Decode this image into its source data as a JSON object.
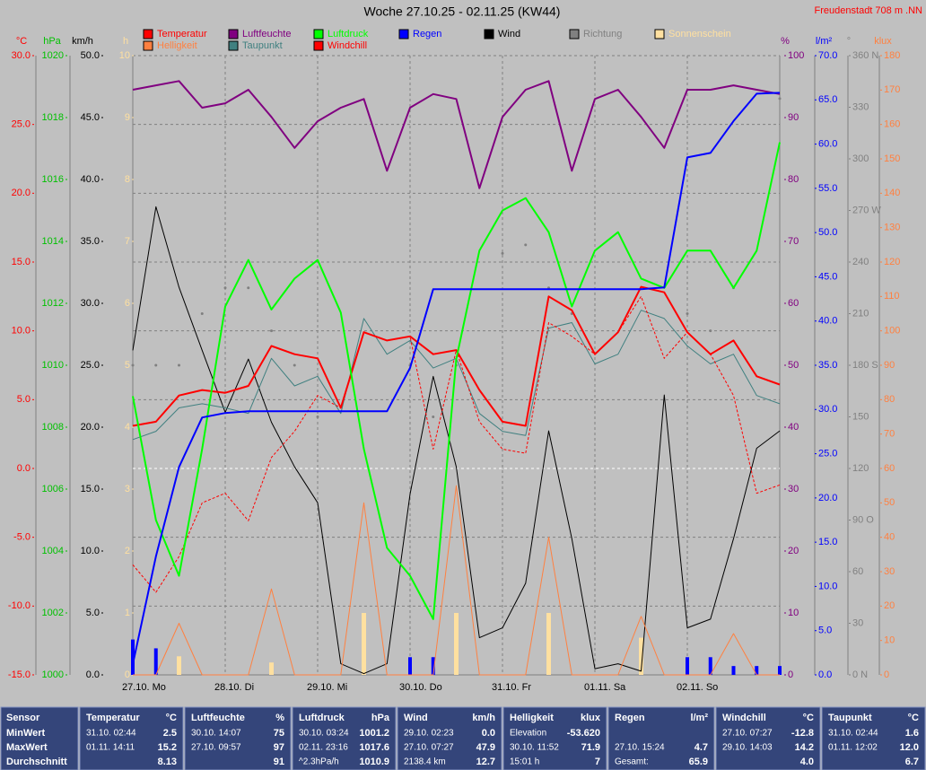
{
  "chart_data": {
    "type": "line",
    "title": "Woche 27.10.25 - 02.11.25 (KW44)",
    "location": "Freudenstadt 708 m  .NN",
    "grid": true,
    "categories": [
      "27.10. Mo",
      null,
      null,
      null,
      "28.10. Di",
      null,
      null,
      null,
      "29.10. Mi",
      null,
      null,
      null,
      "30.10. Do",
      null,
      null,
      null,
      "31.10. Fr",
      null,
      null,
      null,
      "01.11. Sa",
      null,
      null,
      null,
      "02.11. So",
      null,
      null,
      null,
      null
    ],
    "axes": [
      {
        "unit": "°C",
        "color": "#ff0000",
        "lim": [
          -15,
          30
        ],
        "ticks": [
          {
            "value": -15,
            "label": "-15.0"
          },
          {
            "value": -10,
            "label": "-10.0"
          },
          {
            "value": -5,
            "label": "-5.0"
          },
          {
            "value": 0,
            "label": "0.0"
          },
          {
            "value": 5,
            "label": "5.0"
          },
          {
            "value": 10,
            "label": "10.0"
          },
          {
            "value": 15,
            "label": "15.0"
          },
          {
            "value": 20,
            "label": "20.0"
          },
          {
            "value": 25,
            "label": "25.0"
          },
          {
            "value": 30,
            "label": "30.0"
          }
        ]
      },
      {
        "unit": "hPa",
        "color": "#00c000",
        "lim": [
          1000,
          1020
        ],
        "ticks": [
          1000,
          1002,
          1004,
          1006,
          1008,
          1010,
          1012,
          1014,
          1016,
          1018,
          1020
        ]
      },
      {
        "unit": "km/h",
        "color": "#000000",
        "lim": [
          0,
          50
        ],
        "ticks": [
          {
            "value": 0,
            "label": "0.0"
          },
          {
            "value": 5,
            "label": "5.0"
          },
          {
            "value": 10,
            "label": "10.0"
          },
          {
            "value": 15,
            "label": "15.0"
          },
          {
            "value": 20,
            "label": "20.0"
          },
          {
            "value": 25,
            "label": "25.0"
          },
          {
            "value": 30,
            "label": "30.0"
          },
          {
            "value": 35,
            "label": "35.0"
          },
          {
            "value": 40,
            "label": "40.0"
          },
          {
            "value": 45,
            "label": "45.0"
          },
          {
            "value": 50,
            "label": "50.0"
          }
        ]
      },
      {
        "unit": "h",
        "color": "#ffe0a0",
        "lim": [
          0,
          10
        ],
        "ticks": [
          0,
          1,
          2,
          3,
          4,
          5,
          6,
          7,
          8,
          9,
          10
        ]
      },
      {
        "unit": "%",
        "color": "#800080",
        "lim": [
          0,
          100
        ],
        "ticks": [
          0,
          10,
          20,
          30,
          40,
          50,
          60,
          70,
          80,
          90,
          100
        ]
      },
      {
        "unit": "l/m²",
        "color": "#0000ff",
        "lim": [
          0,
          70
        ],
        "ticks": [
          {
            "value": 0,
            "label": "0.0"
          },
          {
            "value": 5,
            "label": "5.0"
          },
          {
            "value": 10,
            "label": "10.0"
          },
          {
            "value": 15,
            "label": "15.0"
          },
          {
            "value": 20,
            "label": "20.0"
          },
          {
            "value": 25,
            "label": "25.0"
          },
          {
            "value": 30,
            "label": "30.0"
          },
          {
            "value": 35,
            "label": "35.0"
          },
          {
            "value": 40,
            "label": "40.0"
          },
          {
            "value": 45,
            "label": "45.0"
          },
          {
            "value": 50,
            "label": "50.0"
          },
          {
            "value": 55,
            "label": "55.0"
          },
          {
            "value": 60,
            "label": "60.0"
          },
          {
            "value": 65,
            "label": "65.0"
          },
          {
            "value": 70,
            "label": "70.0"
          }
        ]
      },
      {
        "unit": "°",
        "color": "#808080",
        "lim": [
          0,
          360
        ],
        "ticks": [
          {
            "value": 0,
            "label": "0 N"
          },
          30,
          60,
          {
            "value": 90,
            "label": "90 O"
          },
          120,
          150,
          {
            "value": 180,
            "label": "180 S"
          },
          210,
          240,
          {
            "value": 270,
            "label": "270 W"
          },
          300,
          330,
          {
            "value": 360,
            "label": "360 N"
          }
        ]
      },
      {
        "unit": "klux",
        "color": "#ff8040",
        "lim": [
          0,
          180
        ],
        "ticks": [
          0,
          10,
          20,
          30,
          40,
          50,
          60,
          70,
          80,
          90,
          100,
          110,
          120,
          130,
          140,
          150,
          160,
          170,
          180
        ]
      }
    ],
    "series": [
      {
        "name": "Temperatur",
        "color": "#ff0000",
        "axis": 0,
        "style": "line",
        "values": [
          3.1,
          3.4,
          5.3,
          5.7,
          5.5,
          6.0,
          8.9,
          8.3,
          8.0,
          4.4,
          9.9,
          9.3,
          9.6,
          8.3,
          8.6,
          5.7,
          3.4,
          3.1,
          12.5,
          11.5,
          8.3,
          9.9,
          13.2,
          12.8,
          9.9,
          8.3,
          9.3,
          6.7,
          6.1
        ]
      },
      {
        "name": "Luftfeuchte",
        "color": "#800080",
        "axis": 4,
        "style": "line",
        "values": [
          94.5,
          95.2,
          95.9,
          91.6,
          92.3,
          94.5,
          90.1,
          85.1,
          89.4,
          91.6,
          93.0,
          81.4,
          91.6,
          93.8,
          93.0,
          78.6,
          90.1,
          94.5,
          95.9,
          81.4,
          93.0,
          94.5,
          90.1,
          85.1,
          94.5,
          94.5,
          95.2,
          94.5,
          93.8
        ]
      },
      {
        "name": "Luftdruck",
        "color": "#00ff00",
        "axis": 1,
        "style": "line",
        "values": [
          1009.0,
          1005.0,
          1003.2,
          1007.3,
          1011.9,
          1013.4,
          1011.8,
          1012.8,
          1013.4,
          1011.7,
          1007.3,
          1004.1,
          1003.2,
          1001.8,
          1010.2,
          1013.7,
          1015.0,
          1015.4,
          1014.3,
          1011.9,
          1013.7,
          1014.3,
          1012.8,
          1012.5,
          1013.7,
          1013.7,
          1012.5,
          1013.7,
          1017.2
        ]
      },
      {
        "name": "Regen",
        "color": "#0000ff",
        "axis": 5,
        "style": "line",
        "values": [
          1.2,
          13.4,
          23.5,
          29.1,
          29.6,
          29.8,
          29.8,
          29.8,
          29.8,
          29.8,
          29.8,
          29.8,
          34.7,
          43.6,
          43.6,
          43.6,
          43.6,
          43.6,
          43.6,
          43.6,
          43.6,
          43.6,
          43.6,
          43.8,
          58.5,
          59.0,
          62.6,
          65.7,
          65.8
        ],
        "amounts": [
          4,
          3,
          1,
          0,
          0,
          0,
          0,
          0,
          0,
          0,
          0,
          0,
          2,
          2,
          0,
          0,
          0,
          0,
          0,
          0,
          0,
          0,
          0,
          0,
          2,
          2,
          1,
          1,
          1
        ]
      },
      {
        "name": "Wind",
        "color": "#000000",
        "axis": 2,
        "style": "thin",
        "values": [
          26.2,
          37.8,
          31.3,
          26.2,
          21.2,
          25.5,
          20.4,
          16.8,
          13.9,
          0.9,
          0.1,
          0.9,
          14.6,
          24.1,
          16.8,
          3.0,
          3.8,
          7.4,
          19.7,
          11.0,
          0.5,
          0.9,
          0.3,
          22.6,
          3.8,
          4.5,
          11.0,
          18.3,
          19.7
        ]
      },
      {
        "name": "Richtung",
        "color": "#808080",
        "axis": 6,
        "style": "dots",
        "values": [
          180,
          180,
          180,
          210,
          225,
          225,
          200,
          180,
          150,
          null,
          null,
          null,
          180,
          150,
          180,
          null,
          245,
          250,
          225,
          210,
          null,
          null,
          null,
          null,
          210,
          200,
          225,
          null,
          335
        ]
      },
      {
        "name": "Sonnenschein",
        "color": "#ffe0a0",
        "axis": 3,
        "style": "bars",
        "values": [
          0,
          0,
          0.3,
          0,
          0,
          0,
          0.2,
          0,
          0,
          0,
          1.0,
          0,
          0,
          0,
          1.0,
          0,
          0,
          0,
          1.0,
          0,
          0,
          0,
          0.6,
          0,
          0,
          0,
          0,
          0,
          0
        ]
      },
      {
        "name": "Helligkeit",
        "color": "#ff8040",
        "axis": 7,
        "style": "thin",
        "values": [
          0,
          0,
          15,
          0,
          0,
          0,
          25,
          0,
          0,
          0,
          50,
          0,
          0,
          0,
          55,
          0,
          0,
          0,
          40,
          0,
          0,
          0,
          17,
          0,
          0,
          0,
          12,
          0,
          0
        ]
      },
      {
        "name": "Taupunkt",
        "color": "#408080",
        "axis": 0,
        "style": "thin",
        "values": [
          2.1,
          2.7,
          4.4,
          4.7,
          4.4,
          4.0,
          8.0,
          6.0,
          6.7,
          4.0,
          10.9,
          8.3,
          9.3,
          7.3,
          8.0,
          4.0,
          2.7,
          2.4,
          10.2,
          10.6,
          7.6,
          8.3,
          11.5,
          10.9,
          8.9,
          7.6,
          8.3,
          5.3,
          4.7
        ]
      },
      {
        "name": "Windchill",
        "color": "#ff0000",
        "axis": 0,
        "style": "dashed",
        "values": [
          -7.0,
          -9.0,
          -6.4,
          -2.5,
          -1.8,
          -3.8,
          0.8,
          2.7,
          5.3,
          4.4,
          9.9,
          9.3,
          9.6,
          1.4,
          8.6,
          3.4,
          1.4,
          1.1,
          10.6,
          9.6,
          8.3,
          9.9,
          12.5,
          8.0,
          9.9,
          8.3,
          5.3,
          -1.8,
          -1.2
        ]
      }
    ]
  },
  "table": {
    "header": "Sensor",
    "row_labels": [
      "MinWert",
      "MaxWert",
      "Durchschnitt"
    ],
    "columns": [
      {
        "name": "Temperatur",
        "unit": "°C",
        "cells": [
          [
            "31.10. 02:44",
            "2.5"
          ],
          [
            "01.11. 14:11",
            "15.2"
          ],
          [
            null,
            "8.13"
          ]
        ]
      },
      {
        "name": "Luftfeuchte",
        "unit": "%",
        "cells": [
          [
            "30.10. 14:07",
            "75"
          ],
          [
            "27.10. 09:57",
            "97"
          ],
          [
            null,
            "91"
          ]
        ]
      },
      {
        "name": "Luftdruck",
        "unit": "hPa",
        "cells": [
          [
            "30.10. 03:24",
            "1001.2"
          ],
          [
            "02.11. 23:16",
            "1017.6"
          ],
          [
            "^2.3hPa/h",
            "1010.9"
          ]
        ]
      },
      {
        "name": "Wind",
        "unit": "km/h",
        "cells": [
          [
            "29.10. 02:23",
            "0.0"
          ],
          [
            "27.10. 07:27",
            "47.9"
          ],
          [
            "2138.4 km",
            "12.7"
          ]
        ]
      },
      {
        "name": "Helligkeit",
        "unit": "klux",
        "cells": [
          [
            "Elevation",
            "-53.620"
          ],
          [
            "30.10. 11:52",
            "71.9"
          ],
          [
            "15:01 h",
            "7"
          ]
        ]
      },
      {
        "name": "Regen",
        "unit": "l/m²",
        "cells": [
          [
            null,
            null
          ],
          [
            "27.10. 15:24",
            "4.7"
          ],
          [
            "Gesamt:",
            "65.9"
          ]
        ]
      },
      {
        "name": "Windchill",
        "unit": "°C",
        "cells": [
          [
            "27.10. 07:27",
            "-12.8"
          ],
          [
            "29.10. 14:03",
            "14.2"
          ],
          [
            null,
            "4.0"
          ]
        ]
      },
      {
        "name": "Taupunkt",
        "unit": "°C",
        "cells": [
          [
            "31.10. 02:44",
            "1.6"
          ],
          [
            "01.11. 12:02",
            "12.0"
          ],
          [
            null,
            "6.7"
          ]
        ]
      }
    ]
  }
}
